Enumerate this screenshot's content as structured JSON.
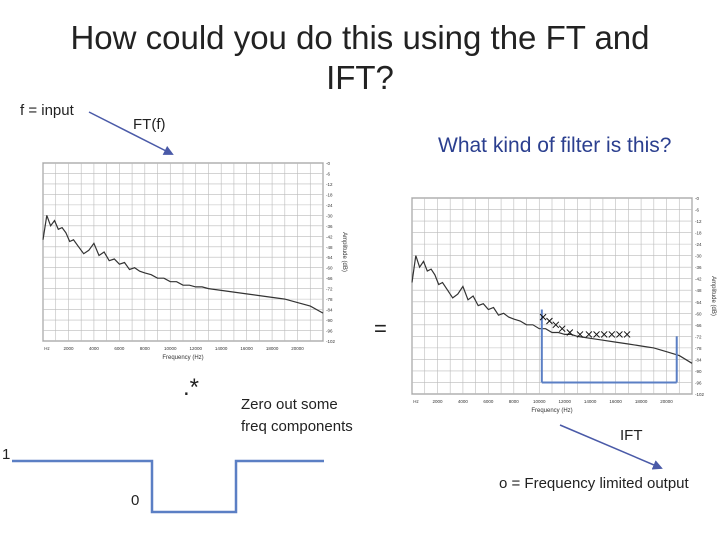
{
  "title_line1": "How could you do this using the FT and",
  "title_line2": "IFT?",
  "labels": {
    "f_input": "f = input",
    "ft_f": "FT(f)",
    "question": "What kind of filter is this?",
    "equals": "=",
    "multiply": ".*",
    "zero_out_line1": "Zero out some",
    "zero_out_line2": "freq components",
    "ift": "IFT",
    "one": "1",
    "zero": "0",
    "output": "o = Frequency limited output"
  },
  "spectrum": {
    "xlabel": "Frequency (Hz)",
    "ylabel": "Amplitude (dB)",
    "x_ticks": [
      "Hz",
      "2000",
      "4000",
      "6000",
      "8000",
      "10000",
      "12000",
      "14000",
      "16000",
      "18000",
      "20000"
    ],
    "y_ticks": [
      "-0",
      "-6",
      "-12",
      "-18",
      "-24",
      "-30",
      "-36",
      "-42",
      "-48",
      "-54",
      "-60",
      "-66",
      "-72",
      "-78",
      "-84",
      "-90",
      "-96",
      "-102"
    ],
    "xlim": [
      0,
      22000
    ],
    "ylim": [
      -102,
      0
    ],
    "curve_x": [
      0,
      300,
      600,
      900,
      1200,
      1500,
      1800,
      2100,
      2400,
      2800,
      3200,
      3600,
      4000,
      4400,
      4800,
      5200,
      5600,
      6000,
      6400,
      6800,
      7200,
      7600,
      8000,
      8500,
      9000,
      9500,
      10000,
      10500,
      11000,
      11500,
      12000,
      12500,
      13000,
      14000,
      15000,
      16000,
      17000,
      18000,
      19000,
      20000,
      21000,
      22000
    ],
    "curve_y": [
      -44,
      -30,
      -36,
      -33,
      -38,
      -37,
      -40,
      -45,
      -44,
      -48,
      -52,
      -50,
      -46,
      -53,
      -51,
      -56,
      -55,
      -58,
      -57,
      -61,
      -60,
      -62,
      -63,
      -64,
      -66,
      -66,
      -68,
      -68,
      -70,
      -70,
      -71,
      -71,
      -72,
      -73,
      -74,
      -75,
      -76,
      -77,
      -78,
      -80,
      -82,
      -86
    ]
  },
  "colors": {
    "title": "#222222",
    "question": "#2b3f8f",
    "arrow": "#4a5aa8",
    "mask": "#5b7fc4",
    "grid": "#bbbbbb"
  }
}
